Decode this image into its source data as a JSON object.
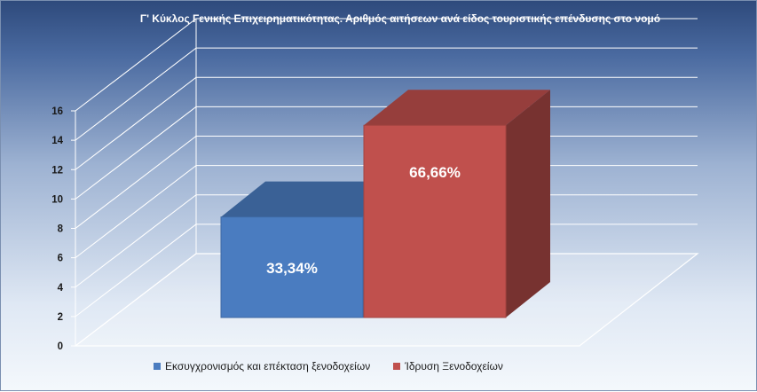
{
  "chart_data": {
    "type": "bar",
    "title": "Γ' Κύκλος Γενικής Επιχειρηματικότητας. Αριθμός αιτήσεων ανά είδος τουριστικής επένδυσης στο νομό",
    "categories": [
      "Εκσυγχρονισμός και επέκταση ξενοδοχείων",
      "Ίδρυση Ξενοδοχείων"
    ],
    "series": [
      {
        "name": "Εκσυγχρονισμός και επέκταση ξενοδοχείων",
        "value": 8,
        "label": "33,34%",
        "color": "#4a7cc0"
      },
      {
        "name": "Ίδρυση Ξενοδοχείων",
        "value": 16,
        "label": "66,66%",
        "color": "#c0504d"
      }
    ],
    "ylim": [
      0,
      16
    ],
    "yticks": [
      "0",
      "2",
      "4",
      "6",
      "8",
      "10",
      "12",
      "14",
      "16"
    ],
    "grid": true,
    "chart_style": "3D clustered columns",
    "legend_position": "bottom"
  }
}
